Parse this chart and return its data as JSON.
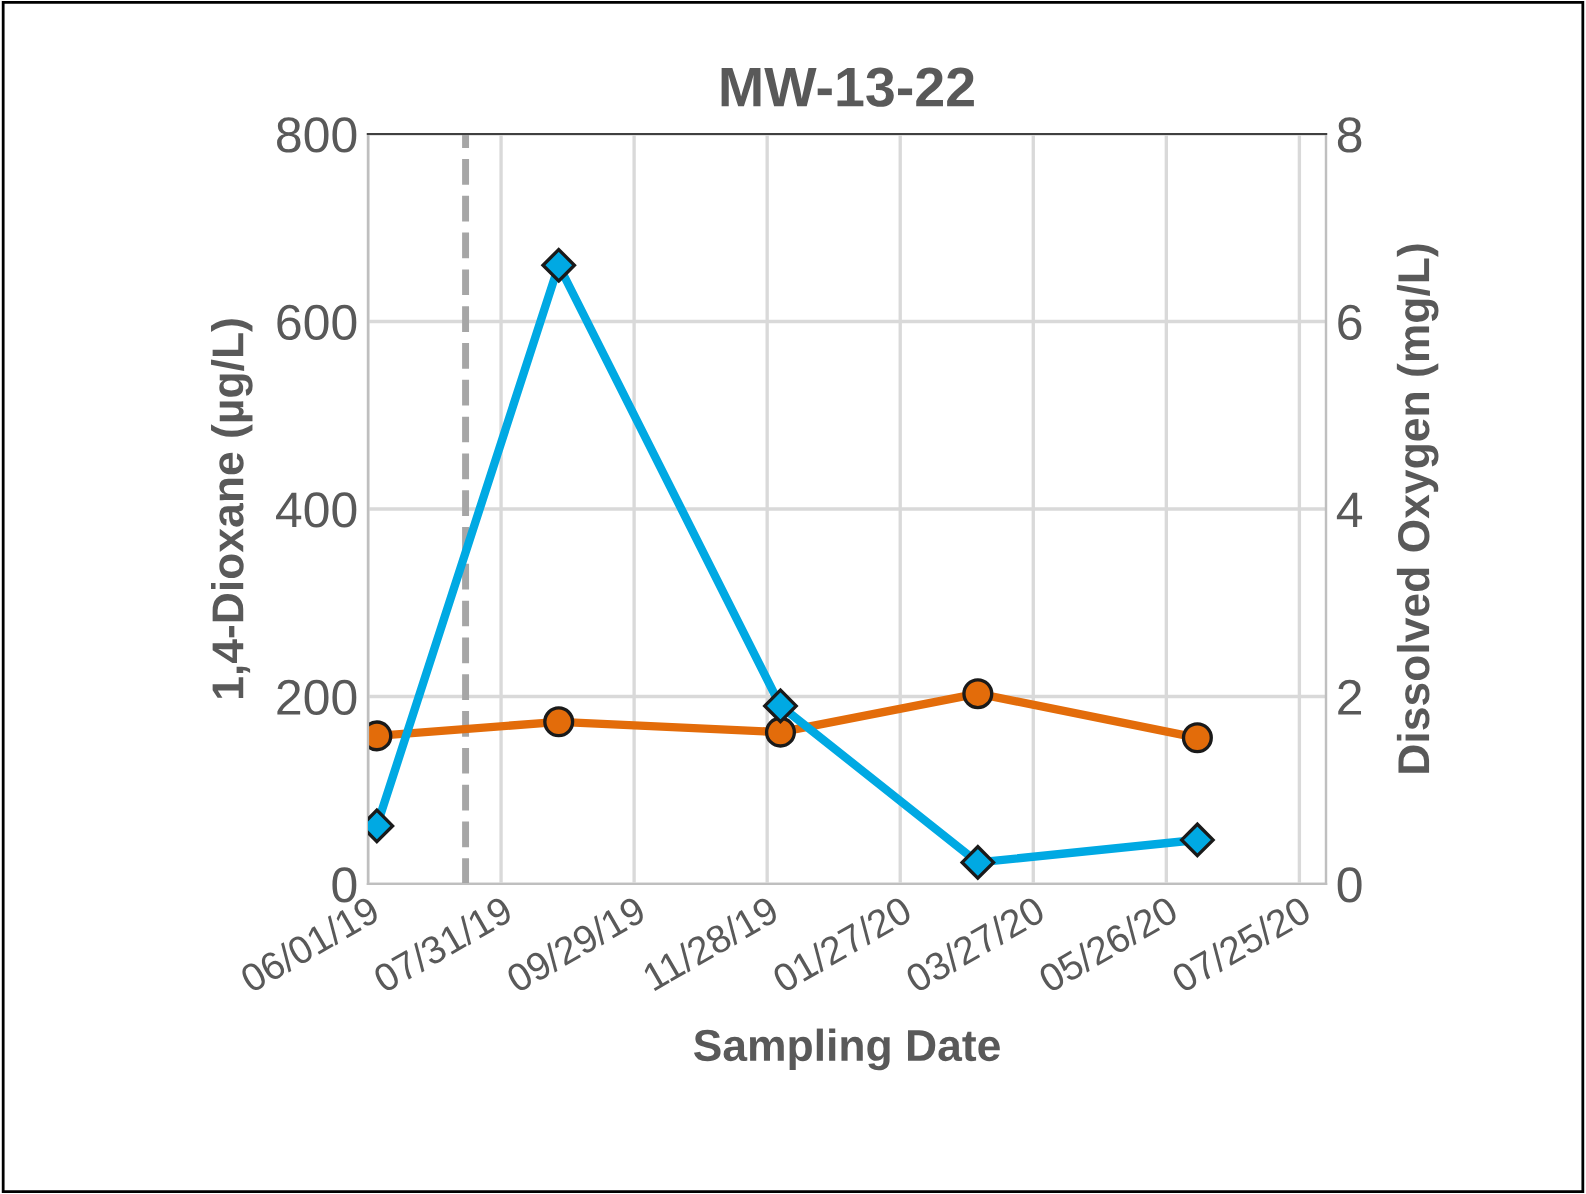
{
  "chart_data": {
    "type": "line",
    "title": "MW-13-22",
    "xlabel": "Sampling Date",
    "ylabel": "1,4-Dioxane (µg/L)",
    "y2label": "Dissolved Oxygen (mg/L)",
    "x": [
      "2019-06-05",
      "2019-08-26",
      "2019-12-04",
      "2020-03-02",
      "2020-06-09"
    ],
    "series": [
      {
        "color": "#e36c0a",
        "values": [
          158,
          173,
          162,
          203,
          156
        ],
        "marker": "circle"
      },
      {
        "color": "#00a9e3",
        "values": [
          0.62,
          6.6,
          1.9,
          0.23,
          0.47
        ],
        "marker": "diamond",
        "axis": "y2"
      }
    ],
    "xlim": [
      "2019-06-01",
      "2020-08-06"
    ],
    "xticks": [
      {
        "value": "2019-06-01",
        "label": "06/01/19"
      },
      {
        "value": "2019-07-31",
        "label": "07/31/19"
      },
      {
        "value": "2019-09-29",
        "label": "09/29/19"
      },
      {
        "value": "2019-11-28",
        "label": "11/28/19"
      },
      {
        "value": "2020-01-27",
        "label": "01/27/20"
      },
      {
        "value": "2020-03-27",
        "label": "03/27/20"
      },
      {
        "value": "2020-05-26",
        "label": "05/26/20"
      },
      {
        "value": "2020-07-25",
        "label": "07/25/20"
      }
    ],
    "ylim": [
      0,
      800
    ],
    "yticks": [
      0,
      200,
      400,
      600,
      800
    ],
    "y2lim": [
      0,
      8
    ],
    "y2ticks": [
      0,
      2,
      4,
      6,
      8
    ],
    "ref_lines": [
      {
        "axis": "x",
        "value": "2019-07-15",
        "label": null,
        "color": "#a6a6a6",
        "line_style": "dashed"
      }
    ],
    "grid": true,
    "line_style": "solid"
  }
}
